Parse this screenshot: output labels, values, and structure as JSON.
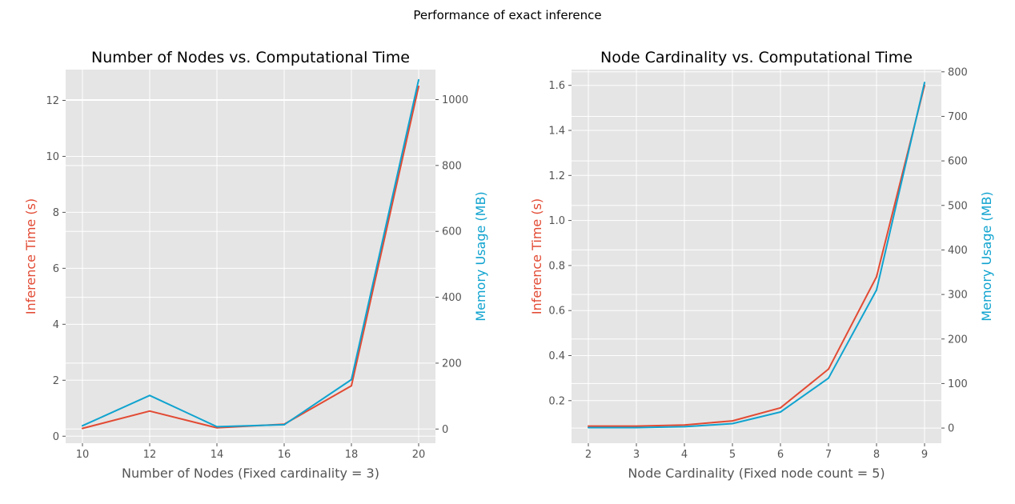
{
  "figure": {
    "suptitle": "Performance of exact inference"
  },
  "colors": {
    "inference": "#E24A33",
    "memory": "#10A3CF",
    "panel_bg": "#E5E5E5",
    "grid": "#FFFFFF",
    "tick_text": "#555555"
  },
  "chart_data": [
    {
      "type": "line",
      "title": "Number of Nodes vs. Computational Time",
      "xlabel": "Number of Nodes (Fixed cardinality = 3)",
      "ylabel": "Inference Time (s)",
      "y2label": "Memory Usage (MB)",
      "x": [
        10,
        12,
        14,
        16,
        18,
        20
      ],
      "xticks": [
        10,
        12,
        14,
        16,
        18,
        20
      ],
      "xlim": [
        9.5,
        20.5
      ],
      "ylim": [
        -0.25,
        13.1
      ],
      "yticks": [
        0,
        2,
        4,
        6,
        8,
        10,
        12
      ],
      "y2lim": [
        -43,
        1091
      ],
      "y2ticks": [
        0,
        200,
        400,
        600,
        800,
        1000
      ],
      "grid": true,
      "series": [
        {
          "name": "Inference Time (s)",
          "axis": "left",
          "values": [
            0.28,
            0.9,
            0.3,
            0.43,
            1.8,
            12.5
          ]
        },
        {
          "name": "Memory Usage (MB)",
          "axis": "right",
          "values": [
            10,
            102,
            7,
            13,
            150,
            1060
          ]
        }
      ]
    },
    {
      "type": "line",
      "title": "Node Cardinality vs. Computational Time",
      "xlabel": "Node Cardinality (Fixed node count = 5)",
      "ylabel": "Inference Time (s)",
      "y2label": "Memory Usage (MB)",
      "x": [
        2,
        3,
        4,
        5,
        6,
        7,
        8,
        9
      ],
      "xticks": [
        2,
        3,
        4,
        5,
        6,
        7,
        8,
        9
      ],
      "xlim": [
        1.65,
        9.35
      ],
      "ylim": [
        0.011,
        1.67
      ],
      "yticks": [
        0.2,
        0.4,
        0.6,
        0.8,
        1.0,
        1.2,
        1.4,
        1.6
      ],
      "y2lim": [
        -34,
        805
      ],
      "y2ticks": [
        0,
        100,
        200,
        300,
        400,
        500,
        600,
        700,
        800
      ],
      "grid": true,
      "series": [
        {
          "name": "Inference Time (s)",
          "axis": "left",
          "values": [
            0.087,
            0.087,
            0.092,
            0.11,
            0.168,
            0.34,
            0.75,
            1.6
          ]
        },
        {
          "name": "Memory Usage (MB)",
          "axis": "right",
          "values": [
            1,
            1,
            3,
            10,
            36,
            112,
            310,
            776
          ]
        }
      ]
    }
  ]
}
